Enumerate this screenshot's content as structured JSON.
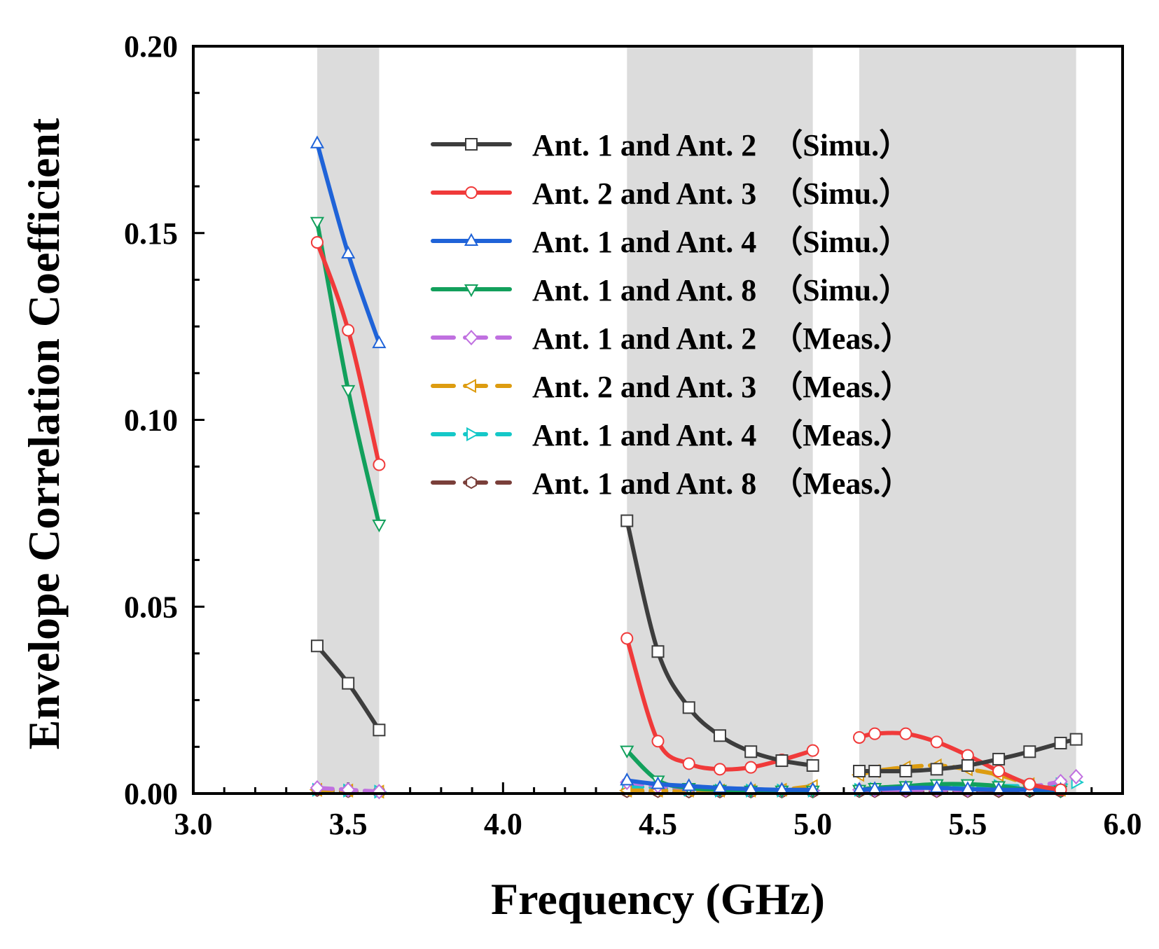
{
  "chart_data": {
    "type": "line",
    "xlabel": "Frequency (GHz)",
    "ylabel": "Envelope Correlation Coefficient",
    "xlim": [
      3.0,
      6.0
    ],
    "ylim": [
      0.0,
      0.2
    ],
    "xticks": [
      "3.0",
      "3.5",
      "4.0",
      "4.5",
      "5.0",
      "5.5",
      "6.0"
    ],
    "xtick_values": [
      3.0,
      3.5,
      4.0,
      4.5,
      5.0,
      5.5,
      6.0
    ],
    "yticks": [
      "0.00",
      "0.05",
      "0.10",
      "0.15",
      "0.20"
    ],
    "ytick_values": [
      0.0,
      0.05,
      0.1,
      0.15,
      0.2
    ],
    "grid": false,
    "legend_position": "top-right",
    "shaded_bands": [
      [
        3.4,
        3.6
      ],
      [
        4.4,
        5.0
      ],
      [
        5.15,
        5.85
      ]
    ],
    "band_color": "#dcdcdc",
    "series": [
      {
        "name": "Ant. 1 and Ant. 2　（Simu.）",
        "color": "#3d3d3d",
        "marker": "square",
        "dash": false,
        "segments": [
          {
            "x": [
              3.4,
              3.5,
              3.6
            ],
            "y": [
              0.0395,
              0.0295,
              0.017
            ]
          },
          {
            "x": [
              4.4,
              4.5,
              4.6,
              4.7,
              4.8,
              4.9,
              5.0
            ],
            "y": [
              0.073,
              0.038,
              0.023,
              0.0155,
              0.0112,
              0.0088,
              0.0075
            ]
          },
          {
            "x": [
              5.15,
              5.2,
              5.3,
              5.4,
              5.5,
              5.6,
              5.7,
              5.8,
              5.85
            ],
            "y": [
              0.006,
              0.006,
              0.006,
              0.0065,
              0.0075,
              0.0092,
              0.0112,
              0.0135,
              0.0145
            ]
          }
        ]
      },
      {
        "name": "Ant. 2 and Ant. 3　（Simu.）",
        "color": "#f03a3a",
        "marker": "circle",
        "dash": false,
        "segments": [
          {
            "x": [
              3.4,
              3.5,
              3.6
            ],
            "y": [
              0.1475,
              0.124,
              0.088
            ]
          },
          {
            "x": [
              4.4,
              4.5,
              4.6,
              4.7,
              4.8,
              4.9,
              5.0
            ],
            "y": [
              0.0415,
              0.014,
              0.008,
              0.0065,
              0.007,
              0.009,
              0.0115
            ]
          },
          {
            "x": [
              5.15,
              5.2,
              5.3,
              5.4,
              5.5,
              5.6,
              5.7,
              5.8
            ],
            "y": [
              0.015,
              0.016,
              0.016,
              0.0138,
              0.0102,
              0.006,
              0.0025,
              0.001
            ]
          }
        ]
      },
      {
        "name": "Ant. 1 and Ant. 4　（Simu.）",
        "color": "#1f63d8",
        "marker": "triangle-up",
        "dash": false,
        "segments": [
          {
            "x": [
              3.4,
              3.5,
              3.6
            ],
            "y": [
              0.174,
              0.1445,
              0.1205
            ]
          },
          {
            "x": [
              4.4,
              4.5,
              4.6,
              4.7,
              4.8,
              4.9,
              5.0
            ],
            "y": [
              0.0035,
              0.0025,
              0.002,
              0.0015,
              0.0012,
              0.001,
              0.001
            ]
          },
          {
            "x": [
              5.15,
              5.2,
              5.3,
              5.4,
              5.5,
              5.6,
              5.7,
              5.8
            ],
            "y": [
              0.001,
              0.0012,
              0.0015,
              0.0015,
              0.0012,
              0.001,
              0.001,
              0.001
            ]
          }
        ]
      },
      {
        "name": "Ant. 1 and Ant. 8　（Simu.）",
        "color": "#12a05c",
        "marker": "triangle-down",
        "dash": false,
        "segments": [
          {
            "x": [
              3.4,
              3.5,
              3.6
            ],
            "y": [
              0.153,
              0.108,
              0.072
            ]
          },
          {
            "x": [
              4.4,
              4.5,
              4.6,
              4.7,
              4.8,
              4.9,
              5.0
            ],
            "y": [
              0.0115,
              0.0035,
              0.0015,
              0.001,
              0.0008,
              0.0008,
              0.0008
            ]
          },
          {
            "x": [
              5.15,
              5.2,
              5.3,
              5.4,
              5.5,
              5.6,
              5.7,
              5.8
            ],
            "y": [
              0.001,
              0.0015,
              0.002,
              0.0025,
              0.0025,
              0.002,
              0.001,
              0.0008
            ]
          }
        ]
      },
      {
        "name": "Ant. 1 and Ant. 2　（Meas.）",
        "color": "#c070e0",
        "marker": "diamond",
        "dash": true,
        "segments": [
          {
            "x": [
              3.4,
              3.5,
              3.6
            ],
            "y": [
              0.0015,
              0.001,
              0.0005
            ]
          },
          {
            "x": [
              4.4,
              4.5,
              4.6,
              4.7,
              4.8,
              4.9,
              5.0
            ],
            "y": [
              0.003,
              0.002,
              0.0015,
              0.001,
              0.0008,
              0.0008,
              0.0008
            ]
          },
          {
            "x": [
              5.15,
              5.2,
              5.3,
              5.4,
              5.5,
              5.6,
              5.7,
              5.8,
              5.85
            ],
            "y": [
              0.001,
              0.001,
              0.001,
              0.001,
              0.001,
              0.0012,
              0.0018,
              0.0032,
              0.0045
            ]
          }
        ]
      },
      {
        "name": "Ant. 2 and Ant. 3　（Meas.）",
        "color": "#dd9c10",
        "marker": "triangle-left",
        "dash": true,
        "segments": [
          {
            "x": [
              3.4,
              3.5,
              3.6
            ],
            "y": [
              0.001,
              0.0008,
              0.0005
            ]
          },
          {
            "x": [
              4.4,
              4.5,
              4.6,
              4.7,
              4.8,
              4.9,
              5.0
            ],
            "y": [
              0.0008,
              0.0008,
              0.0008,
              0.0008,
              0.0008,
              0.001,
              0.002
            ]
          },
          {
            "x": [
              5.15,
              5.2,
              5.3,
              5.4,
              5.5,
              5.6,
              5.7,
              5.8
            ],
            "y": [
              0.005,
              0.006,
              0.007,
              0.0075,
              0.0065,
              0.005,
              0.0025,
              0.001
            ]
          }
        ]
      },
      {
        "name": "Ant. 1 and Ant. 4　（Meas.）",
        "color": "#15c8c8",
        "marker": "triangle-right",
        "dash": true,
        "segments": [
          {
            "x": [
              3.4,
              3.5,
              3.6
            ],
            "y": [
              0.001,
              0.0008,
              0.0005
            ]
          },
          {
            "x": [
              4.4,
              4.5,
              4.6,
              4.7,
              4.8,
              4.9,
              5.0
            ],
            "y": [
              0.002,
              0.0015,
              0.001,
              0.0008,
              0.0008,
              0.0008,
              0.0008
            ]
          },
          {
            "x": [
              5.15,
              5.2,
              5.3,
              5.4,
              5.5,
              5.6,
              5.7,
              5.8,
              5.85
            ],
            "y": [
              0.001,
              0.0012,
              0.0015,
              0.0018,
              0.002,
              0.002,
              0.002,
              0.0025,
              0.003
            ]
          }
        ]
      },
      {
        "name": "Ant. 1 and Ant. 8　（Meas.）",
        "color": "#7a3f3a",
        "marker": "hexagon",
        "dash": true,
        "segments": [
          {
            "x": [
              3.4,
              3.5,
              3.6
            ],
            "y": [
              0.0008,
              0.0005,
              0.0004
            ]
          },
          {
            "x": [
              4.4,
              4.5,
              4.6,
              4.7,
              4.8,
              4.9,
              5.0
            ],
            "y": [
              0.0005,
              0.0005,
              0.0004,
              0.0004,
              0.0004,
              0.0004,
              0.0004
            ]
          },
          {
            "x": [
              5.15,
              5.2,
              5.3,
              5.4,
              5.5,
              5.6,
              5.7,
              5.8
            ],
            "y": [
              0.0005,
              0.0005,
              0.0005,
              0.0005,
              0.0005,
              0.0005,
              0.0005,
              0.0005
            ]
          }
        ]
      }
    ]
  }
}
